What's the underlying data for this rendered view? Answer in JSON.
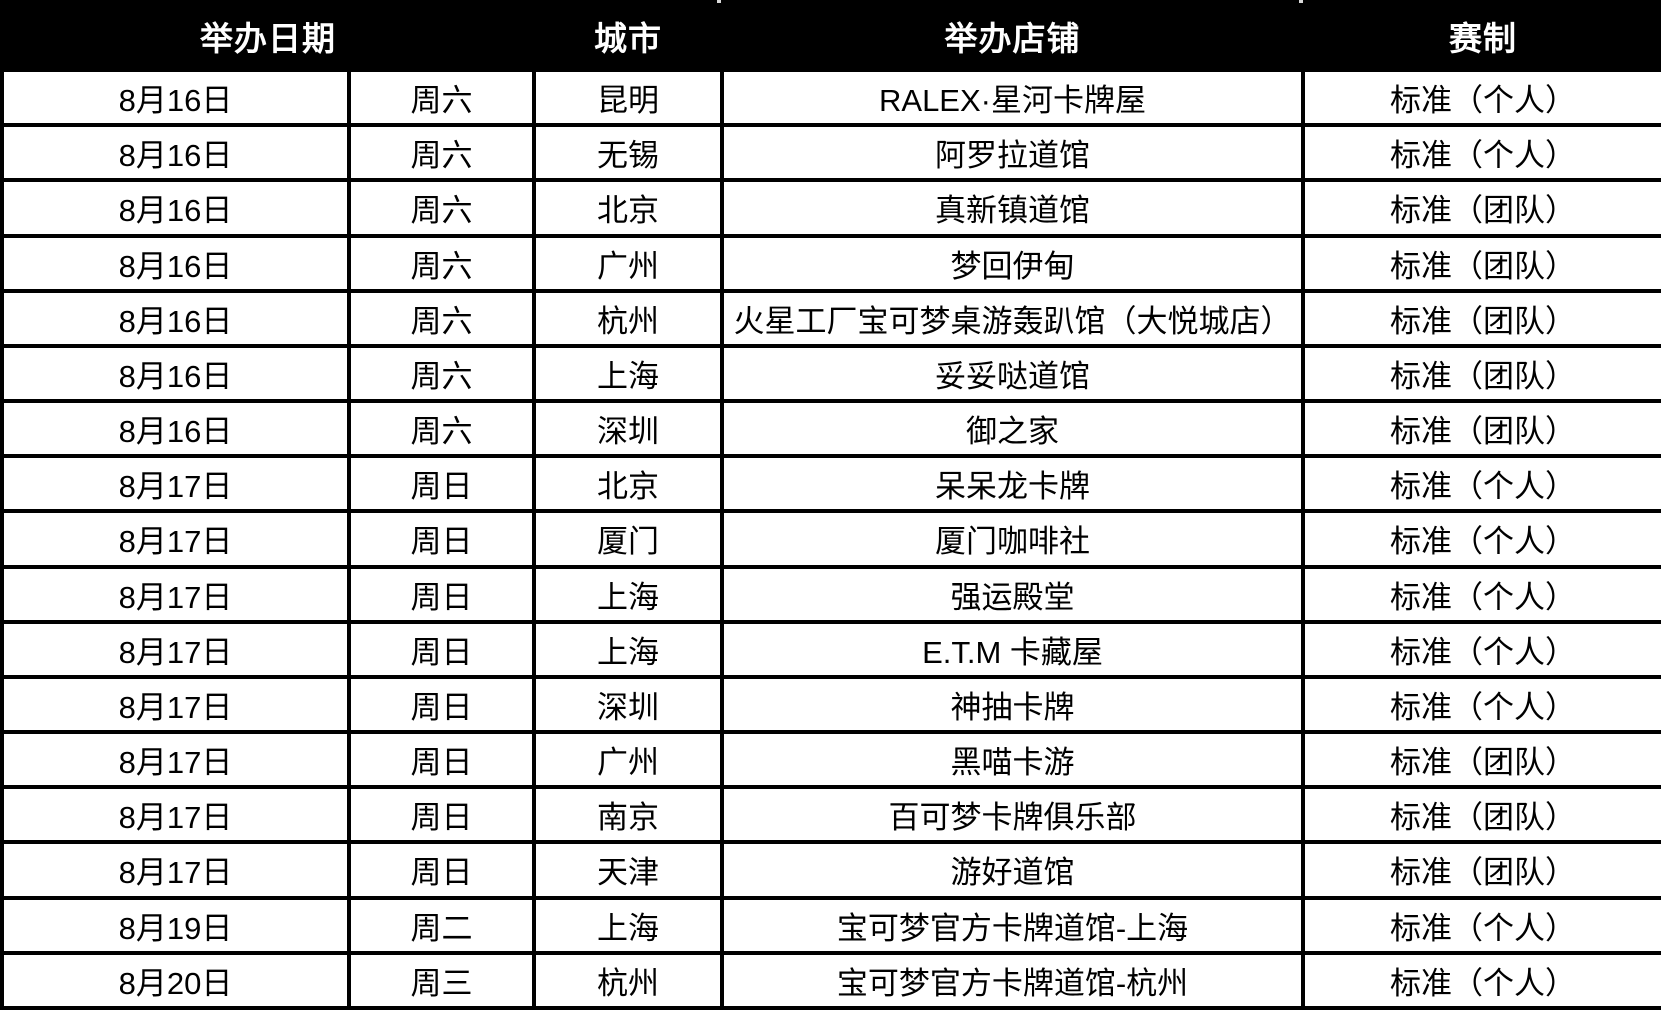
{
  "table": {
    "headers": {
      "date": "举办日期",
      "city": "城市",
      "store": "举办店铺",
      "format": "赛制"
    },
    "rows": [
      {
        "date": "8月16日",
        "weekday": "周六",
        "city": "昆明",
        "store": "RALEX·星河卡牌屋",
        "format": "标准（个人）"
      },
      {
        "date": "8月16日",
        "weekday": "周六",
        "city": "无锡",
        "store": "阿罗拉道馆",
        "format": "标准（个人）"
      },
      {
        "date": "8月16日",
        "weekday": "周六",
        "city": "北京",
        "store": "真新镇道馆",
        "format": "标准（团队）"
      },
      {
        "date": "8月16日",
        "weekday": "周六",
        "city": "广州",
        "store": "梦回伊甸",
        "format": "标准（团队）"
      },
      {
        "date": "8月16日",
        "weekday": "周六",
        "city": "杭州",
        "store": "火星工厂宝可梦桌游轰趴馆（大悦城店）",
        "format": "标准（团队）"
      },
      {
        "date": "8月16日",
        "weekday": "周六",
        "city": "上海",
        "store": "妥妥哒道馆",
        "format": "标准（团队）"
      },
      {
        "date": "8月16日",
        "weekday": "周六",
        "city": "深圳",
        "store": "御之家",
        "format": "标准（团队）"
      },
      {
        "date": "8月17日",
        "weekday": "周日",
        "city": "北京",
        "store": "呆呆龙卡牌",
        "format": "标准（个人）"
      },
      {
        "date": "8月17日",
        "weekday": "周日",
        "city": "厦门",
        "store": "厦门咖啡社",
        "format": "标准（个人）"
      },
      {
        "date": "8月17日",
        "weekday": "周日",
        "city": "上海",
        "store": "强运殿堂",
        "format": "标准（个人）"
      },
      {
        "date": "8月17日",
        "weekday": "周日",
        "city": "上海",
        "store": "E.T.M 卡藏屋",
        "format": "标准（个人）"
      },
      {
        "date": "8月17日",
        "weekday": "周日",
        "city": "深圳",
        "store": "神抽卡牌",
        "format": "标准（个人）"
      },
      {
        "date": "8月17日",
        "weekday": "周日",
        "city": "广州",
        "store": "黑喵卡游",
        "format": "标准（团队）"
      },
      {
        "date": "8月17日",
        "weekday": "周日",
        "city": "南京",
        "store": "百可梦卡牌俱乐部",
        "format": "标准（团队）"
      },
      {
        "date": "8月17日",
        "weekday": "周日",
        "city": "天津",
        "store": "游好道馆",
        "format": "标准（团队）"
      },
      {
        "date": "8月19日",
        "weekday": "周二",
        "city": "上海",
        "store": "宝可梦官方卡牌道馆-上海",
        "format": "标准（个人）"
      },
      {
        "date": "8月20日",
        "weekday": "周三",
        "city": "杭州",
        "store": "宝可梦官方卡牌道馆-杭州",
        "format": "标准（个人）"
      }
    ]
  },
  "colors": {
    "header_bg": "#000000",
    "header_text": "#ffffff",
    "row_bg": "#ffffff",
    "body_text": "#000000",
    "border": "#000000"
  }
}
